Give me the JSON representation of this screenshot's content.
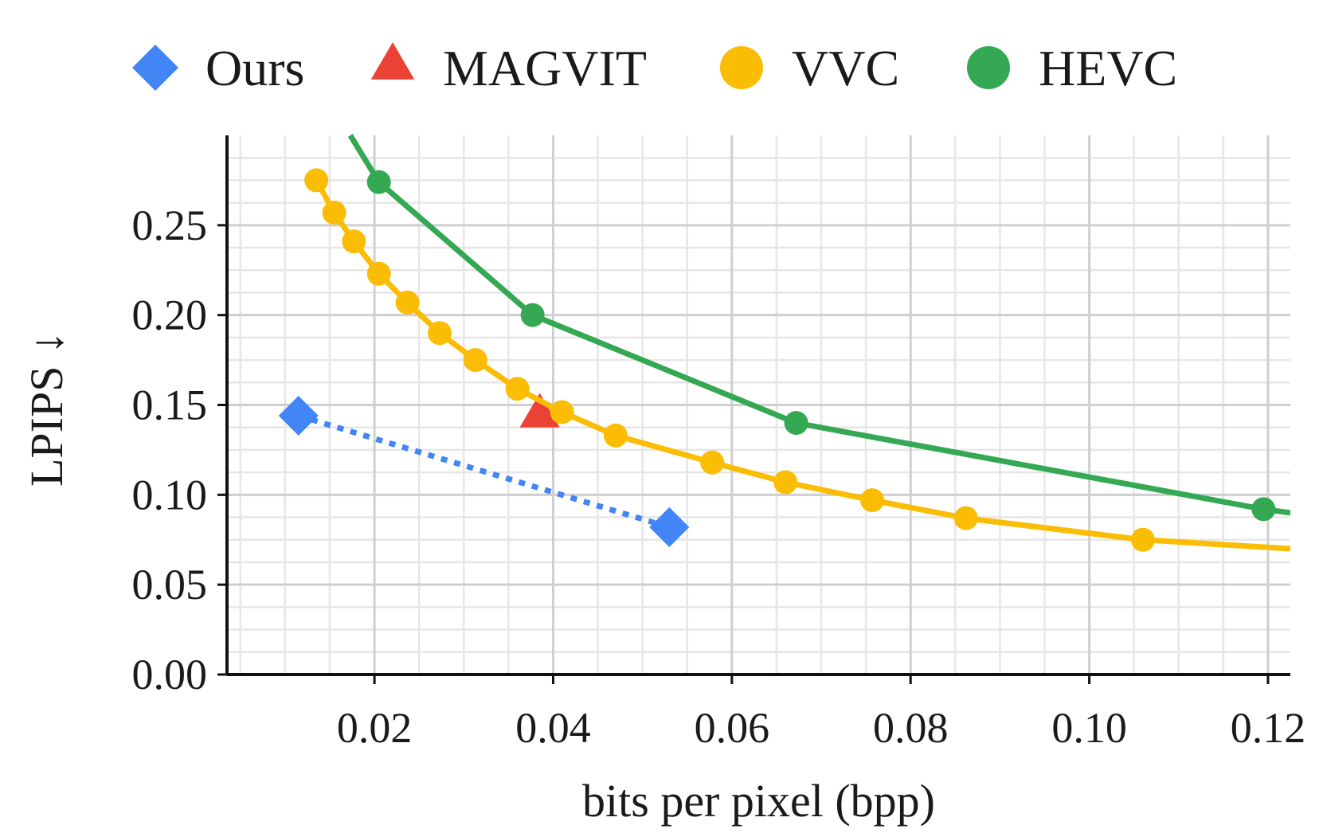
{
  "chart_data": {
    "type": "line",
    "xlabel": "bits per pixel (bpp)",
    "ylabel": "LPIPS ↓",
    "xlim": [
      0.0035,
      0.1225
    ],
    "ylim": [
      0.0,
      0.3
    ],
    "x_ticks": [
      0.02,
      0.04,
      0.06,
      0.08,
      0.1,
      0.12
    ],
    "x_tick_labels": [
      "0.02",
      "0.04",
      "0.06",
      "0.08",
      "0.10",
      "0.12"
    ],
    "y_ticks": [
      0.0,
      0.05,
      0.1,
      0.15,
      0.2,
      0.25
    ],
    "y_tick_labels": [
      "0.00",
      "0.05",
      "0.10",
      "0.15",
      "0.20",
      "0.25"
    ],
    "grid": true,
    "minor_grid": true,
    "legend_position": "top",
    "series": [
      {
        "name": "Ours",
        "marker": "diamond",
        "line": "dotted",
        "color": "#4285F4",
        "x": [
          0.0115,
          0.053
        ],
        "y": [
          0.144,
          0.082
        ]
      },
      {
        "name": "MAGVIT",
        "marker": "triangle",
        "line": "none",
        "color": "#EA4335",
        "x": [
          0.0385
        ],
        "y": [
          0.146
        ]
      },
      {
        "name": "VVC",
        "marker": "circle",
        "line": "solid",
        "color": "#FBBC04",
        "x": [
          0.0135,
          0.0155,
          0.0177,
          0.0205,
          0.0237,
          0.0273,
          0.0313,
          0.036,
          0.041,
          0.047,
          0.0578,
          0.066,
          0.0757,
          0.0862,
          0.106
        ],
        "y": [
          0.275,
          0.257,
          0.241,
          0.223,
          0.207,
          0.19,
          0.175,
          0.159,
          0.146,
          0.133,
          0.118,
          0.107,
          0.097,
          0.087,
          0.075
        ],
        "line_extends_to": [
          0.1225,
          0.07
        ]
      },
      {
        "name": "HEVC",
        "marker": "circle",
        "line": "solid",
        "color": "#34A853",
        "x": [
          0.0205,
          0.0377,
          0.0672,
          0.1195
        ],
        "y": [
          0.274,
          0.2,
          0.14,
          0.092
        ],
        "line_starts_at": [
          0.0173,
          0.3
        ],
        "line_extends_to": [
          0.1225,
          0.09
        ]
      }
    ]
  }
}
